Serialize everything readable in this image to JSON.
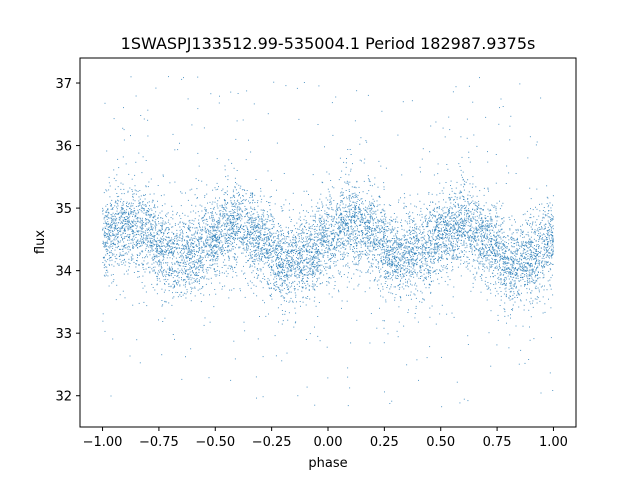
{
  "chart_data": {
    "type": "scatter",
    "title": "1SWASPJ133512.99-535004.1 Period 182987.9375s",
    "xlabel": "phase",
    "ylabel": "flux",
    "xlim": [
      -1.1,
      1.1
    ],
    "ylim": [
      31.5,
      37.4
    ],
    "xticks": [
      -1.0,
      -0.75,
      -0.5,
      -0.25,
      0.0,
      0.25,
      0.5,
      0.75,
      1.0
    ],
    "xtick_labels": [
      "−1.00",
      "−0.75",
      "−0.50",
      "−0.25",
      "0.00",
      "0.25",
      "0.50",
      "0.75",
      "1.00"
    ],
    "yticks": [
      32,
      33,
      34,
      35,
      36,
      37
    ],
    "ytick_labels": [
      "32",
      "33",
      "34",
      "35",
      "36",
      "37"
    ],
    "grid": false,
    "legend": "none",
    "point_color": "#1f77b4",
    "phase_range": [
      -1.0,
      1.0
    ],
    "trend": [
      {
        "phase": -1.0,
        "flux": 34.5
      },
      {
        "phase": -0.9,
        "flux": 34.75
      },
      {
        "phase": -0.8,
        "flux": 34.6
      },
      {
        "phase": -0.7,
        "flux": 34.25
      },
      {
        "phase": -0.6,
        "flux": 34.3
      },
      {
        "phase": -0.5,
        "flux": 34.55
      },
      {
        "phase": -0.4,
        "flux": 34.75
      },
      {
        "phase": -0.3,
        "flux": 34.5
      },
      {
        "phase": -0.2,
        "flux": 34.15
      },
      {
        "phase": -0.1,
        "flux": 34.2
      },
      {
        "phase": 0.0,
        "flux": 34.5
      },
      {
        "phase": 0.1,
        "flux": 34.75
      },
      {
        "phase": 0.2,
        "flux": 34.6
      },
      {
        "phase": 0.3,
        "flux": 34.25
      },
      {
        "phase": 0.4,
        "flux": 34.3
      },
      {
        "phase": 0.5,
        "flux": 34.55
      },
      {
        "phase": 0.6,
        "flux": 34.75
      },
      {
        "phase": 0.7,
        "flux": 34.5
      },
      {
        "phase": 0.8,
        "flux": 34.15
      },
      {
        "phase": 0.9,
        "flux": 34.2
      },
      {
        "phase": 1.0,
        "flux": 34.5
      }
    ],
    "scatter_sigma": 0.32
  }
}
